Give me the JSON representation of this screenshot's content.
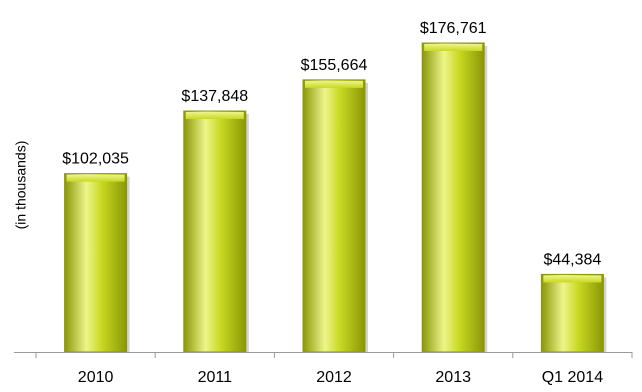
{
  "chart_data": {
    "type": "bar",
    "categories": [
      "2010",
      "2011",
      "2012",
      "2013",
      "Q1 2014"
    ],
    "values": [
      102035,
      137848,
      155664,
      176761,
      44384
    ],
    "value_labels": [
      "$102,035",
      "$137,848",
      "$155,664",
      "$176,761",
      "$44,384"
    ],
    "title": "",
    "xlabel": "",
    "ylabel": "(in thousands)",
    "ylim": [
      0,
      176761
    ],
    "grid": false,
    "legend": "none",
    "bar_color": "#c8d820",
    "bar_highlight": "#eef58a",
    "bar_shadow": "#8a9708"
  }
}
